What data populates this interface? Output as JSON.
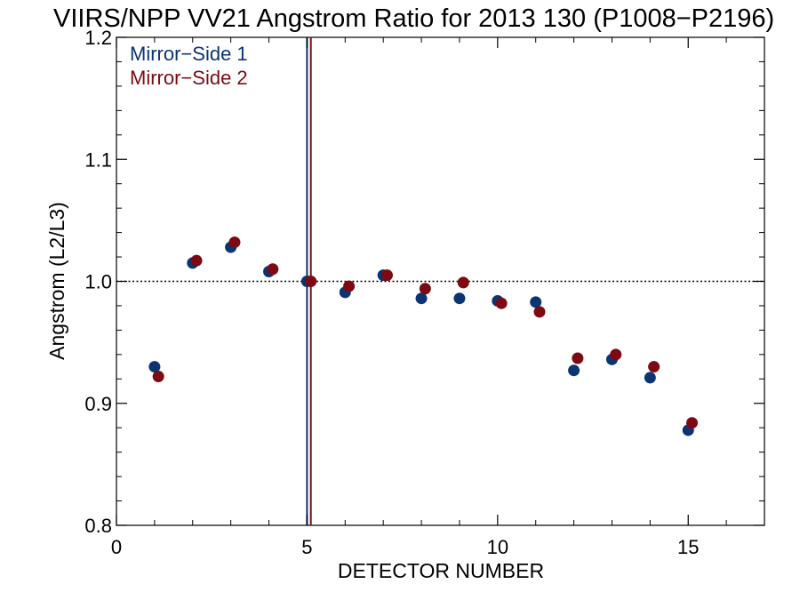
{
  "chart_data": {
    "type": "scatter",
    "title": "VIIRS/NPP VV21 Angstrom Ratio for 2013 130 (P1008−P2196)",
    "xlabel": "DETECTOR NUMBER",
    "ylabel": "Angstrom (L2/L3)",
    "xlim": [
      0,
      17
    ],
    "ylim": [
      0.8,
      1.2
    ],
    "x_ticks": [
      0,
      5,
      10,
      15
    ],
    "y_ticks": [
      0.8,
      0.9,
      1.0,
      1.1,
      1.2
    ],
    "x_tick_labels": [
      "0",
      "5",
      "10",
      "15"
    ],
    "y_tick_labels": [
      "0.8",
      "0.9",
      "1.0",
      "1.1",
      "1.2"
    ],
    "reference_line_y": 1.0,
    "vertical_lines": [
      {
        "series": "Mirror−Side 1",
        "x": 5.0
      },
      {
        "series": "Mirror−Side 2",
        "x": 5.1
      }
    ],
    "legend": "top-left",
    "grid": false,
    "series": [
      {
        "name": "Mirror−Side 1",
        "color": "#0b3473",
        "x": [
          1,
          2,
          3,
          4,
          5,
          6,
          7,
          8,
          9,
          10,
          11,
          12,
          13,
          14,
          15
        ],
        "y": [
          0.93,
          1.015,
          1.028,
          1.008,
          1.0,
          0.991,
          1.005,
          0.986,
          0.986,
          0.984,
          0.983,
          0.927,
          0.936,
          0.921,
          0.878
        ]
      },
      {
        "name": "Mirror−Side 2",
        "color": "#7d0a12",
        "x": [
          1.1,
          2.1,
          3.1,
          4.1,
          5.1,
          6.1,
          7.1,
          8.1,
          9.1,
          10.1,
          11.1,
          12.1,
          13.1,
          14.1,
          15.1
        ],
        "y": [
          0.922,
          1.017,
          1.032,
          1.01,
          1.0,
          0.996,
          1.005,
          0.994,
          0.999,
          0.982,
          0.975,
          0.937,
          0.94,
          0.93,
          0.884
        ]
      }
    ]
  }
}
